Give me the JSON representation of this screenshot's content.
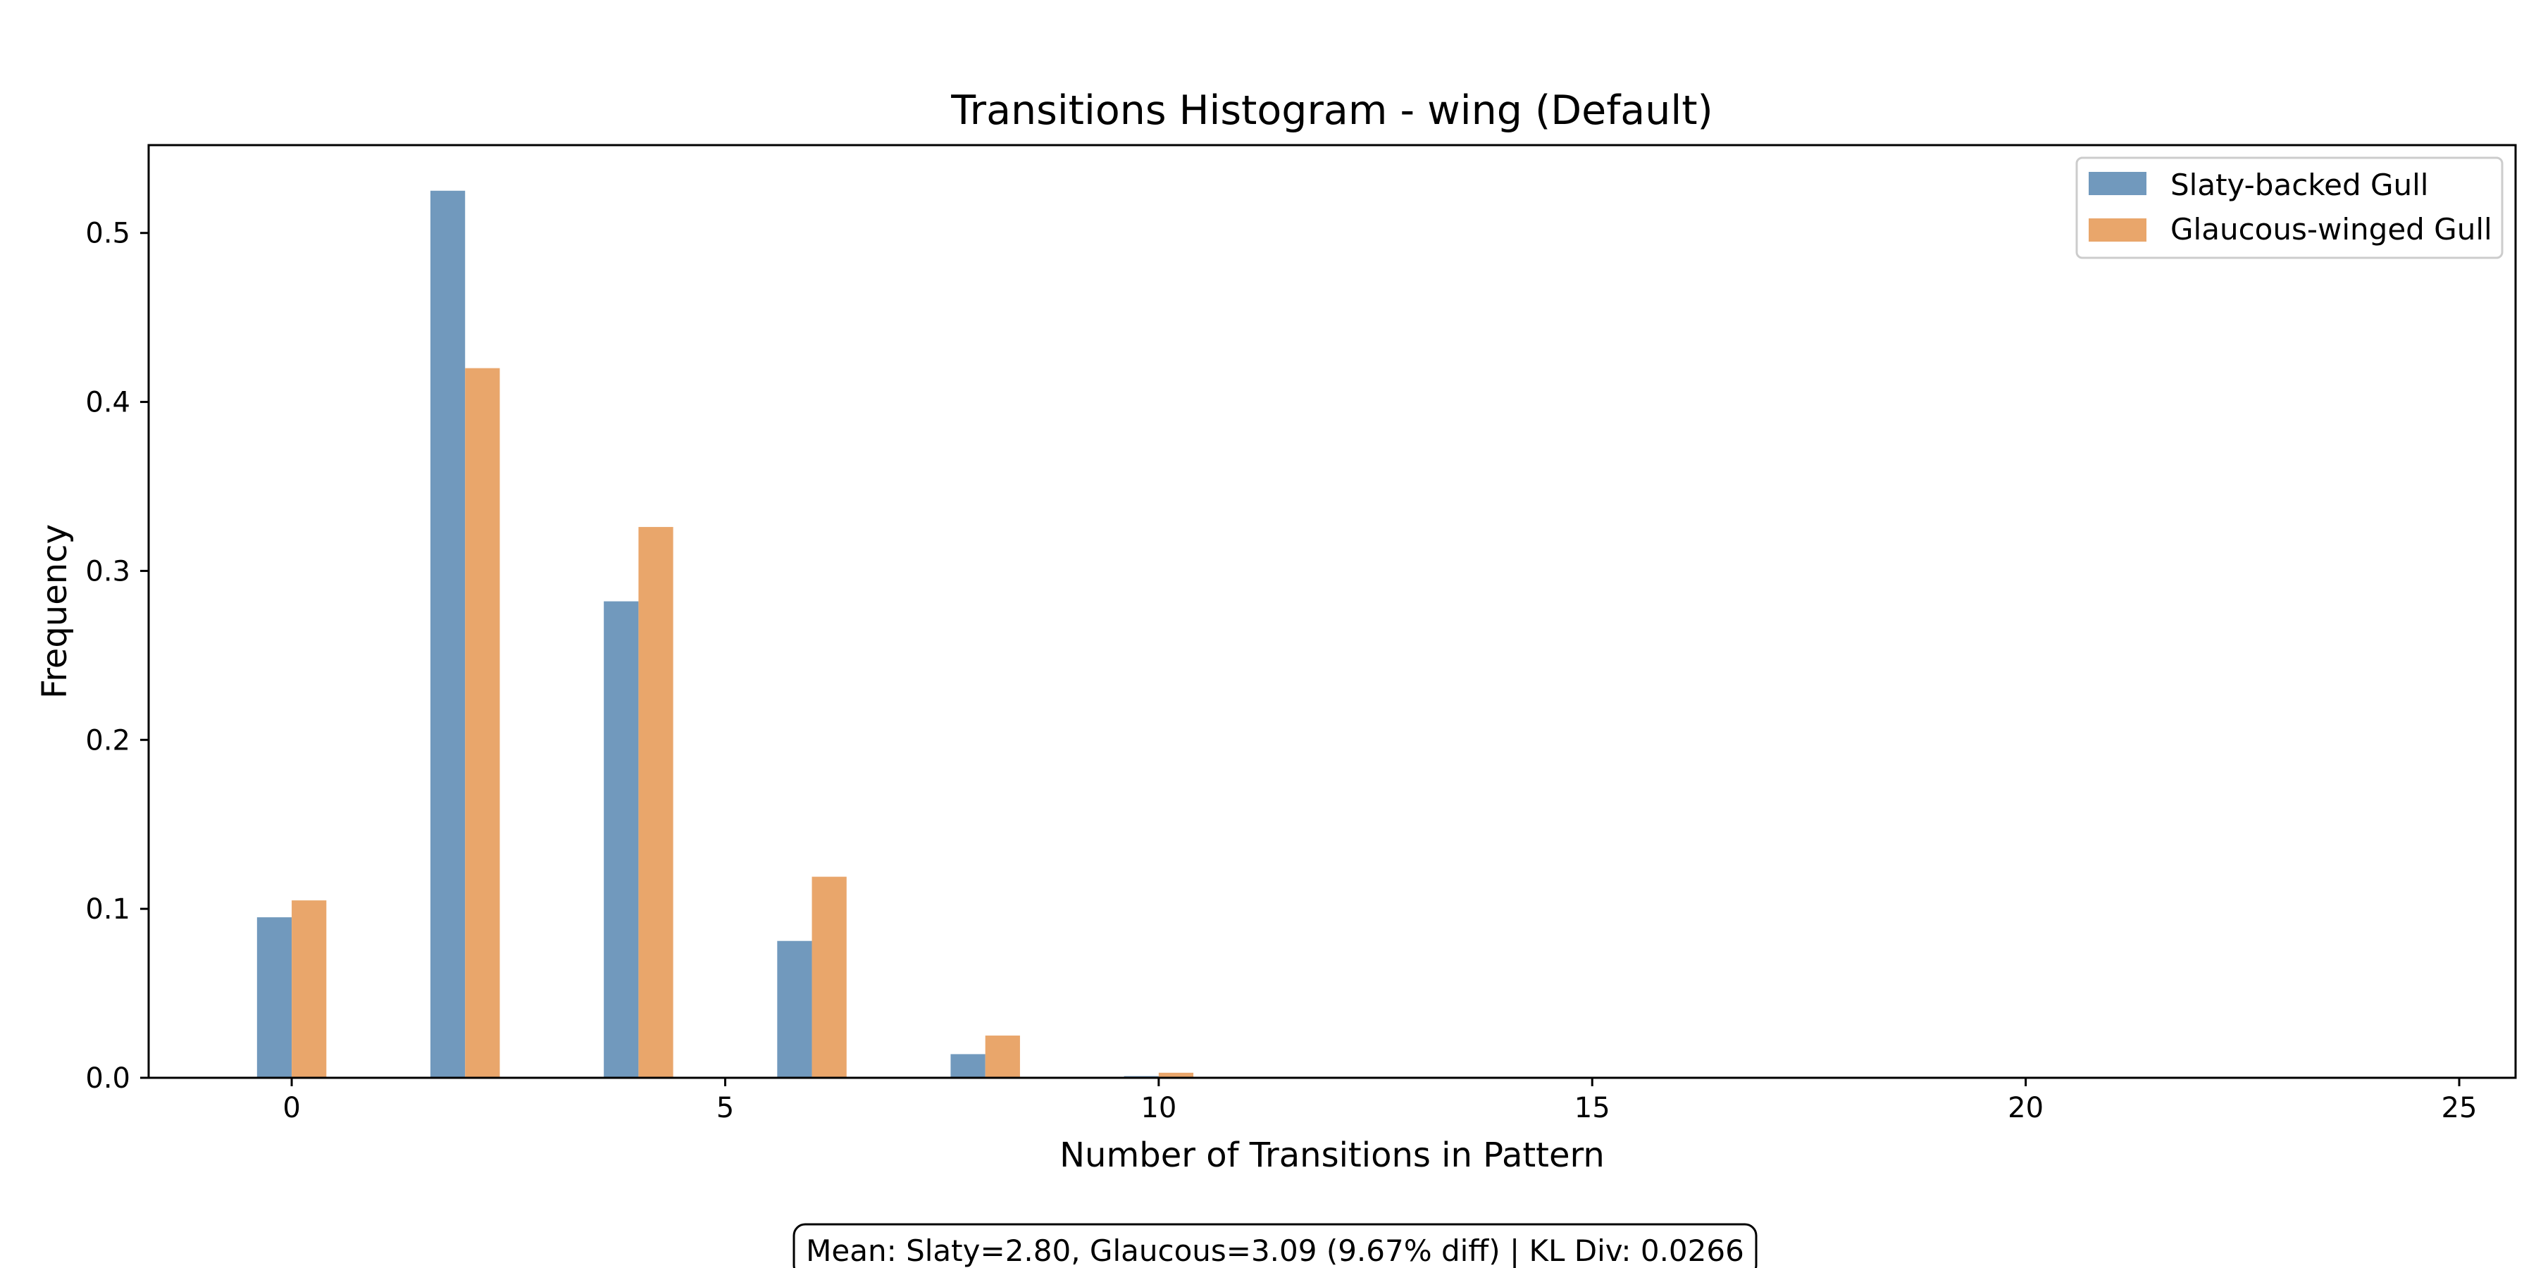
{
  "chart_data": {
    "type": "bar",
    "title": "Transitions Histogram - wing (Default)",
    "xlabel": "Number of Transitions in Pattern",
    "ylabel": "Frequency",
    "xlim": [
      -1.65,
      25.65
    ],
    "ylim": [
      0,
      0.552
    ],
    "xticks": [
      "0",
      "5",
      "10",
      "15",
      "20",
      "25"
    ],
    "xtick_values": [
      0,
      5,
      10,
      15,
      20,
      25
    ],
    "yticks": [
      "0.0",
      "0.1",
      "0.2",
      "0.3",
      "0.4",
      "0.5"
    ],
    "ytick_values": [
      0,
      0.1,
      0.2,
      0.3,
      0.4,
      0.5
    ],
    "grid": false,
    "legend_position": "top-right",
    "bins": [
      0,
      2,
      4,
      6,
      8,
      10
    ],
    "series": [
      {
        "name": "Slaty-backed Gull",
        "color": "#7199bd",
        "values": [
          0.095,
          0.525,
          0.282,
          0.081,
          0.014,
          0.001
        ]
      },
      {
        "name": "Glaucous-winged Gull",
        "color": "#e9a66b",
        "values": [
          0.105,
          0.42,
          0.326,
          0.119,
          0.025,
          0.003
        ]
      }
    ],
    "annotation": "Mean: Slaty=2.80, Glaucous=3.09 (9.67% diff) | KL Div: 0.0266"
  }
}
